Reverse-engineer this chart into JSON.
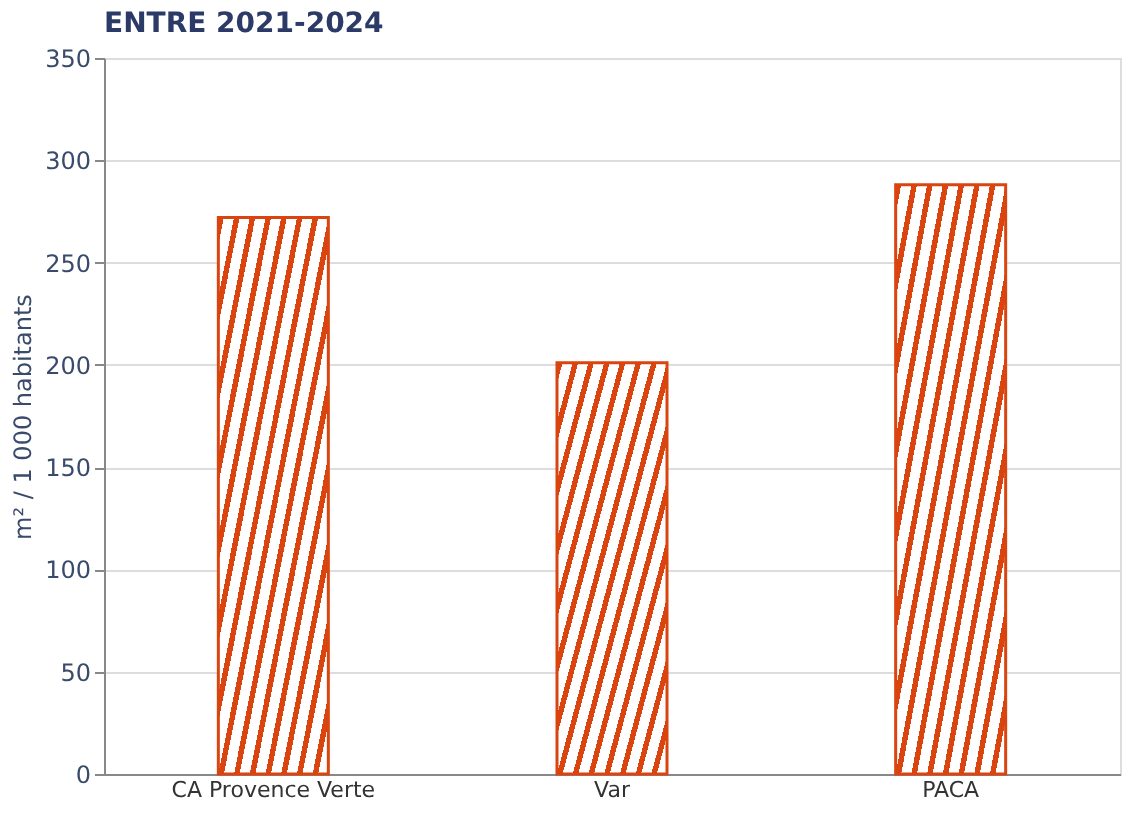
{
  "chart_data": {
    "type": "bar",
    "title": "ENTRE 2021-2024",
    "ylabel": "m² / 1 000 habitants",
    "categories": [
      "CA Provence Verte",
      "Var",
      "PACA"
    ],
    "series": [
      {
        "color": "#d9440f",
        "values": [
          272,
          201,
          288
        ]
      }
    ],
    "ylim": [
      0,
      350
    ],
    "yticks": [
      0,
      50,
      100,
      150,
      200,
      250,
      300,
      350
    ],
    "grid": "y"
  }
}
